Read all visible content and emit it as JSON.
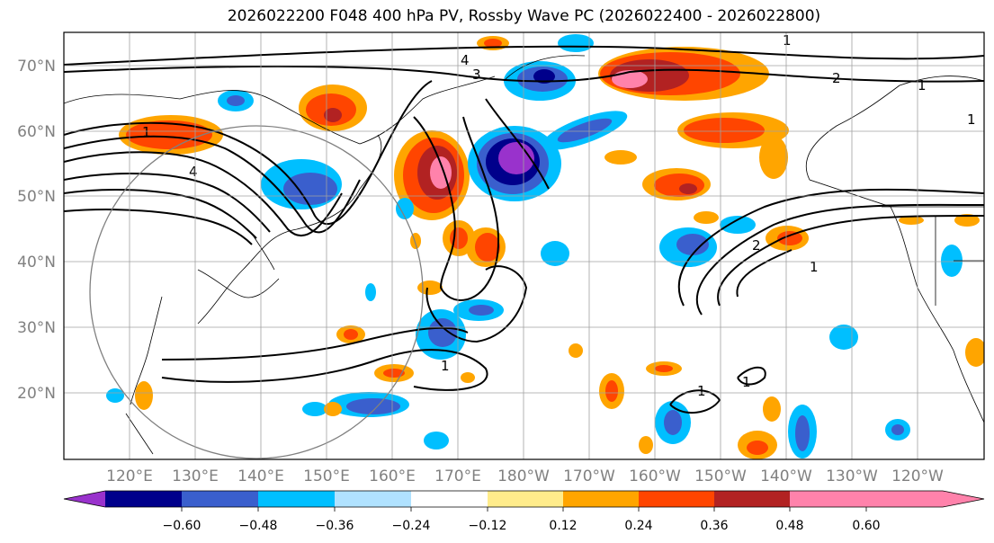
{
  "title": "2026022200 F048 400 hPa PV, Rossby Wave PC (2026022400 - 2026022800)",
  "axes": {
    "lat_labels": [
      "70°N",
      "60°N",
      "50°N",
      "40°N",
      "30°N",
      "20°N"
    ],
    "lon_labels": [
      "120°E",
      "130°E",
      "140°E",
      "150°E",
      "160°E",
      "170°E",
      "180°W",
      "170°W",
      "160°W",
      "150°W",
      "140°W",
      "130°W",
      "120°W"
    ]
  },
  "colorbar": {
    "colors": [
      "#9932cc",
      "#00008b",
      "#3a5fcd",
      "#00bfff",
      "#b0e2ff",
      "#ffffff",
      "#ffec8b",
      "#ffa500",
      "#ff4500",
      "#b22222",
      "#ff82ab"
    ],
    "tick_labels": [
      "−0.60",
      "−0.48",
      "−0.36",
      "−0.24",
      "−0.12",
      "0.12",
      "0.24",
      "0.36",
      "0.48",
      "0.60"
    ]
  },
  "contour_labels": [
    "1",
    "4",
    "3",
    "1",
    "2",
    "1",
    "4",
    "1",
    "1",
    "1",
    "2",
    "1",
    "1"
  ],
  "icons": {
    "colorbar_left": "triangle-left-extend",
    "colorbar_right": "triangle-right-extend"
  }
}
